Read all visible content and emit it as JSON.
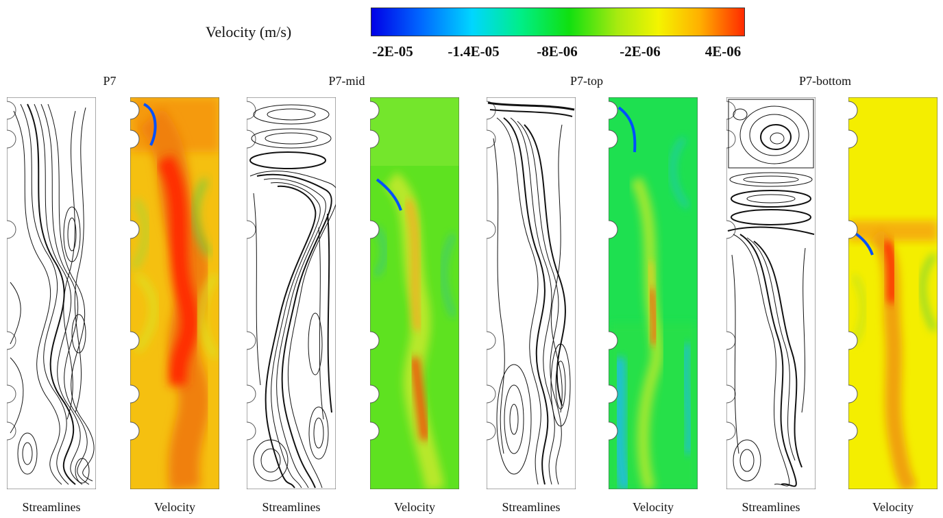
{
  "legend": {
    "title": "Velocity (m/s)",
    "ticks": [
      "-2E-05",
      "-1.4E-05",
      "-8E-06",
      "-2E-06",
      "4E-06"
    ],
    "colormap": [
      "#0000e6",
      "#00d6ff",
      "#10e010",
      "#f4f400",
      "#ff2a00"
    ]
  },
  "groups": [
    {
      "title": "P7",
      "streamlines_label": "Streamlines",
      "velocity_label": "Velocity"
    },
    {
      "title": "P7-mid",
      "streamlines_label": "Streamlines",
      "velocity_label": "Velocity"
    },
    {
      "title": "P7-top",
      "streamlines_label": "Streamlines",
      "velocity_label": "Velocity"
    },
    {
      "title": "P7-bottom",
      "streamlines_label": "Streamlines",
      "velocity_label": "Velocity"
    }
  ]
}
